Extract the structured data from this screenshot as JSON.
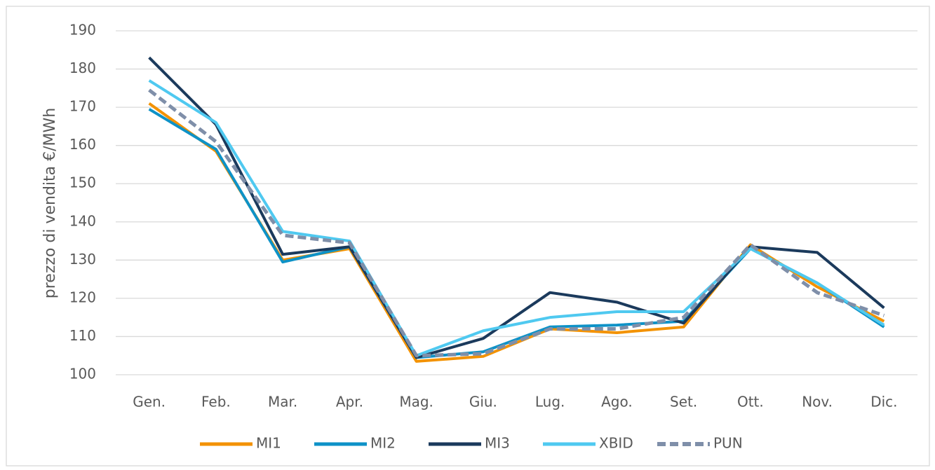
{
  "chart_data": {
    "type": "line",
    "y_label": "prezzo di vendita €/MWh",
    "categories": [
      "Gen.",
      "Feb.",
      "Mar.",
      "Apr.",
      "Mag.",
      "Giu.",
      "Lug.",
      "Ago.",
      "Set.",
      "Ott.",
      "Nov.",
      "Dic."
    ],
    "series": [
      {
        "name": "MI1",
        "color": "#f39200",
        "values": [
          171,
          158.5,
          130,
          133,
          103.5,
          104.8,
          112,
          111,
          112.5,
          134,
          123,
          114
        ]
      },
      {
        "name": "MI2",
        "color": "#0e92c7",
        "values": [
          169.5,
          159,
          129.5,
          133.5,
          104.5,
          106,
          112.5,
          113,
          114,
          133,
          124,
          112.5
        ]
      },
      {
        "name": "MI3",
        "color": "#1b3a5c",
        "values": [
          183,
          165.5,
          131.5,
          133.5,
          104.5,
          109.5,
          121.5,
          119,
          113.5,
          133.5,
          132,
          117.5
        ]
      },
      {
        "name": "XBID",
        "color": "#4fc9f0",
        "values": [
          177,
          166,
          137.5,
          135,
          105,
          111.5,
          115,
          116.5,
          116.5,
          133,
          124,
          113
        ]
      },
      {
        "name": "PUN",
        "color": "#7f8fa9",
        "dashed": true,
        "values": [
          174.5,
          161,
          136.5,
          134.5,
          105,
          105.5,
          112,
          112,
          115,
          134,
          121.5,
          115.5
        ]
      }
    ],
    "ylim": [
      100,
      190
    ],
    "yticks": [
      100,
      110,
      120,
      130,
      140,
      150,
      160,
      170,
      180,
      190
    ],
    "grid": true,
    "legend": "bottom"
  }
}
